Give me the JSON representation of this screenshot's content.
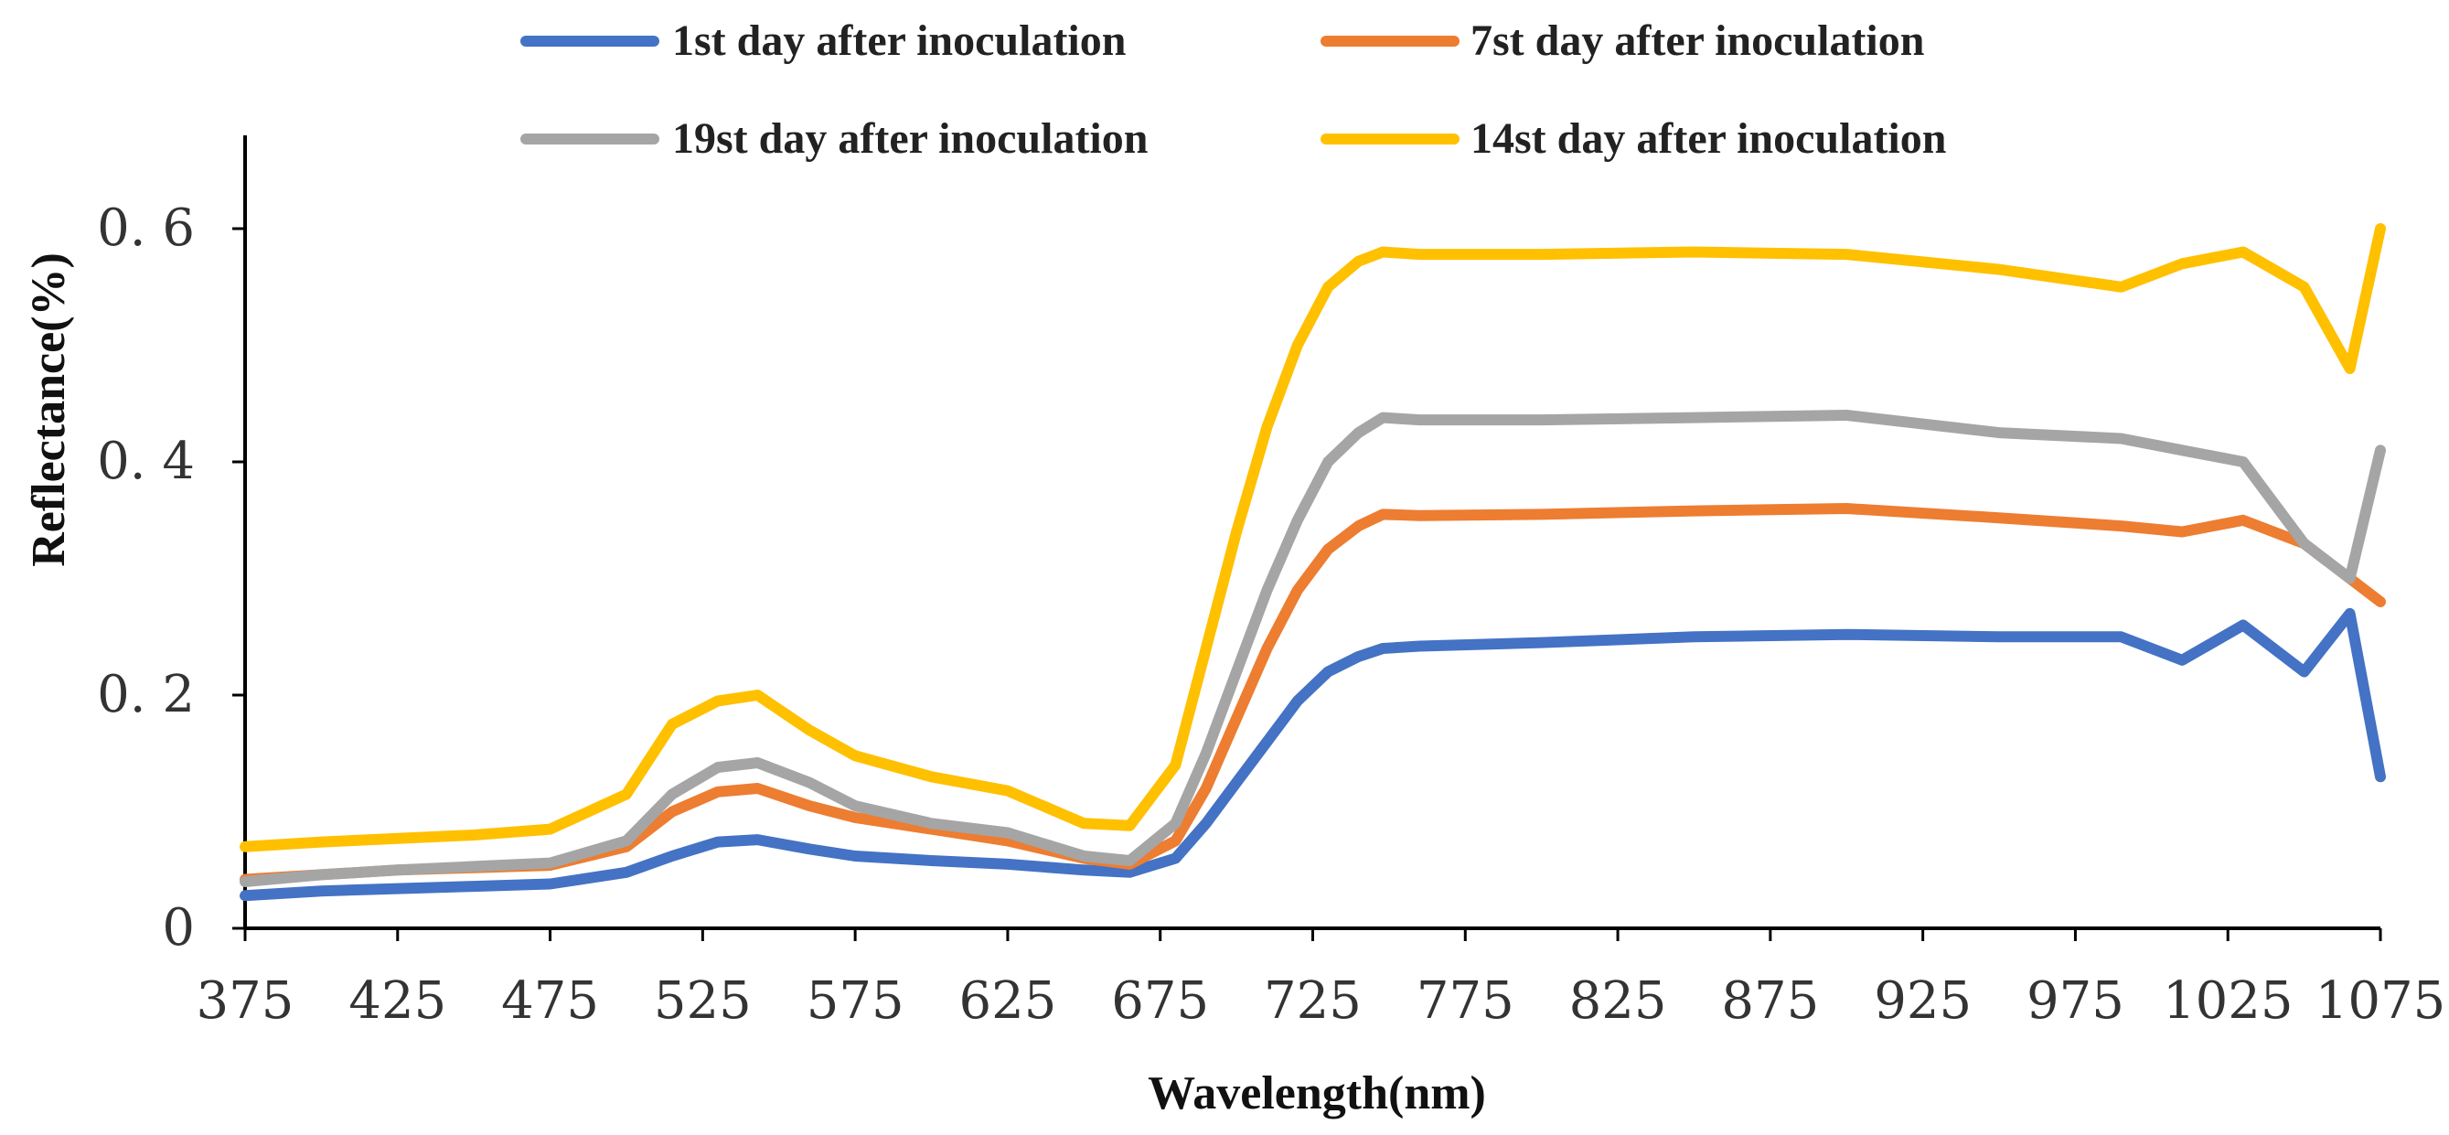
{
  "chart_data": {
    "type": "line",
    "title": "",
    "xlabel": "Wavelength(nm)",
    "ylabel": "Reflectance(%)",
    "xlim": [
      375,
      1075
    ],
    "ylim": [
      0,
      0.68
    ],
    "x_ticks": [
      375,
      425,
      475,
      525,
      575,
      625,
      675,
      725,
      775,
      825,
      875,
      925,
      975,
      1025,
      1075
    ],
    "y_ticks": [
      0,
      0.2,
      0.4,
      0.6
    ],
    "y_tick_labels": [
      "0",
      "0. 2",
      "0. 4",
      "0. 6"
    ],
    "legend_position": "top",
    "series": [
      {
        "name": "1st day after inoculation",
        "color": "#4472C4",
        "x": [
          375,
          400,
          425,
          450,
          475,
          500,
          515,
          530,
          543,
          560,
          575,
          600,
          625,
          650,
          665,
          680,
          690,
          700,
          710,
          720,
          730,
          740,
          748,
          760,
          800,
          850,
          900,
          950,
          990,
          1010,
          1030,
          1050,
          1065,
          1075
        ],
        "values": [
          0.028,
          0.032,
          0.034,
          0.036,
          0.038,
          0.048,
          0.062,
          0.074,
          0.076,
          0.068,
          0.062,
          0.058,
          0.055,
          0.05,
          0.048,
          0.06,
          0.09,
          0.125,
          0.16,
          0.195,
          0.22,
          0.233,
          0.24,
          0.242,
          0.245,
          0.25,
          0.252,
          0.25,
          0.25,
          0.23,
          0.26,
          0.22,
          0.27,
          0.13
        ]
      },
      {
        "name": "7st day after inoculation",
        "color": "#ED7D31",
        "x": [
          375,
          400,
          425,
          450,
          475,
          500,
          515,
          530,
          543,
          560,
          575,
          600,
          625,
          650,
          665,
          680,
          690,
          700,
          710,
          720,
          730,
          740,
          748,
          760,
          800,
          850,
          900,
          950,
          990,
          1010,
          1030,
          1050,
          1065,
          1075
        ],
        "values": [
          0.042,
          0.046,
          0.05,
          0.052,
          0.054,
          0.07,
          0.1,
          0.117,
          0.12,
          0.105,
          0.095,
          0.085,
          0.075,
          0.06,
          0.055,
          0.075,
          0.12,
          0.18,
          0.24,
          0.29,
          0.325,
          0.345,
          0.355,
          0.354,
          0.355,
          0.358,
          0.36,
          0.352,
          0.345,
          0.34,
          0.35,
          0.33,
          0.3,
          0.28
        ]
      },
      {
        "name": "19st day after inoculation",
        "color": "#A5A5A5",
        "x": [
          375,
          400,
          425,
          450,
          475,
          500,
          515,
          530,
          543,
          560,
          575,
          600,
          625,
          650,
          665,
          680,
          690,
          700,
          710,
          720,
          730,
          740,
          748,
          760,
          800,
          850,
          900,
          950,
          990,
          1010,
          1030,
          1050,
          1065,
          1075
        ],
        "values": [
          0.04,
          0.046,
          0.05,
          0.053,
          0.056,
          0.075,
          0.115,
          0.138,
          0.142,
          0.125,
          0.105,
          0.09,
          0.082,
          0.062,
          0.058,
          0.09,
          0.15,
          0.22,
          0.29,
          0.35,
          0.4,
          0.425,
          0.438,
          0.436,
          0.436,
          0.438,
          0.44,
          0.425,
          0.42,
          0.41,
          0.4,
          0.33,
          0.3,
          0.41
        ]
      },
      {
        "name": "14st day after inoculation",
        "color": "#FFC000",
        "x": [
          375,
          400,
          425,
          450,
          475,
          500,
          515,
          530,
          543,
          560,
          575,
          600,
          625,
          650,
          665,
          680,
          690,
          700,
          710,
          720,
          730,
          740,
          748,
          760,
          800,
          850,
          900,
          950,
          990,
          1010,
          1030,
          1050,
          1065,
          1075
        ],
        "values": [
          0.07,
          0.074,
          0.077,
          0.08,
          0.085,
          0.115,
          0.175,
          0.195,
          0.2,
          0.17,
          0.148,
          0.13,
          0.118,
          0.09,
          0.088,
          0.14,
          0.24,
          0.34,
          0.43,
          0.5,
          0.55,
          0.572,
          0.58,
          0.578,
          0.578,
          0.58,
          0.578,
          0.565,
          0.55,
          0.57,
          0.58,
          0.55,
          0.48,
          0.6
        ]
      }
    ]
  }
}
